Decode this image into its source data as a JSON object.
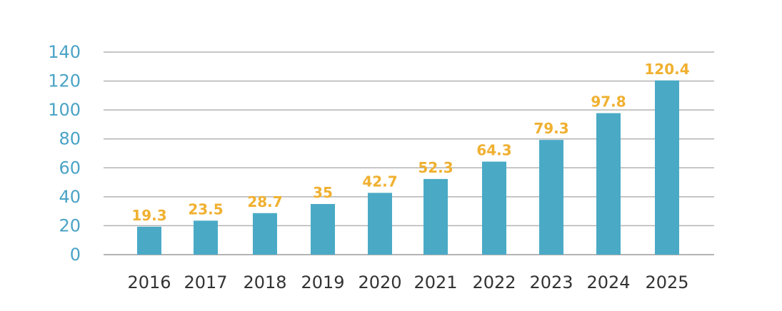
{
  "chart_data": {
    "type": "bar",
    "categories": [
      "2016",
      "2017",
      "2018",
      "2019",
      "2020",
      "2021",
      "2022",
      "2023",
      "2024",
      "2025"
    ],
    "values": [
      19.3,
      23.5,
      28.7,
      35,
      42.7,
      52.3,
      64.3,
      79.3,
      97.8,
      120.4
    ],
    "value_labels": [
      "19.3",
      "23.5",
      "28.7",
      "35",
      "42.7",
      "52.3",
      "64.3",
      "79.3",
      "97.8",
      "120.4"
    ],
    "y_ticks": [
      "0",
      "20",
      "40",
      "60",
      "80",
      "100",
      "120",
      "140"
    ],
    "ylim": [
      0,
      140
    ],
    "grid": true,
    "colors": {
      "bar": "#4aaac6",
      "value_label": "#f0b030",
      "y_tick": "#4aa3c6",
      "x_tick": "#333333",
      "grid": "#b3b3b3"
    }
  }
}
